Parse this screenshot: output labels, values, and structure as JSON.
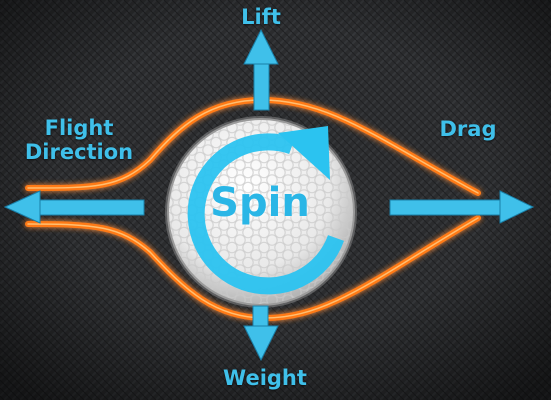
{
  "labels": {
    "lift": "Lift",
    "flight_direction_line1": "Flight",
    "flight_direction_line2": "Direction",
    "drag": "Drag",
    "weight": "Weight",
    "spin": "Spin"
  },
  "colors": {
    "background": "#2a2b2d",
    "arrow": "#3fc0ea",
    "spin_arrow": "#2bc3f0",
    "airflow": "#ff7a12",
    "ball": "#f2f2f2"
  },
  "icons": {
    "lift": "arrow-up-icon",
    "weight": "arrow-down-icon",
    "drag": "arrow-right-icon",
    "flight": "arrow-left-icon",
    "spin": "spin-arrow-icon"
  }
}
